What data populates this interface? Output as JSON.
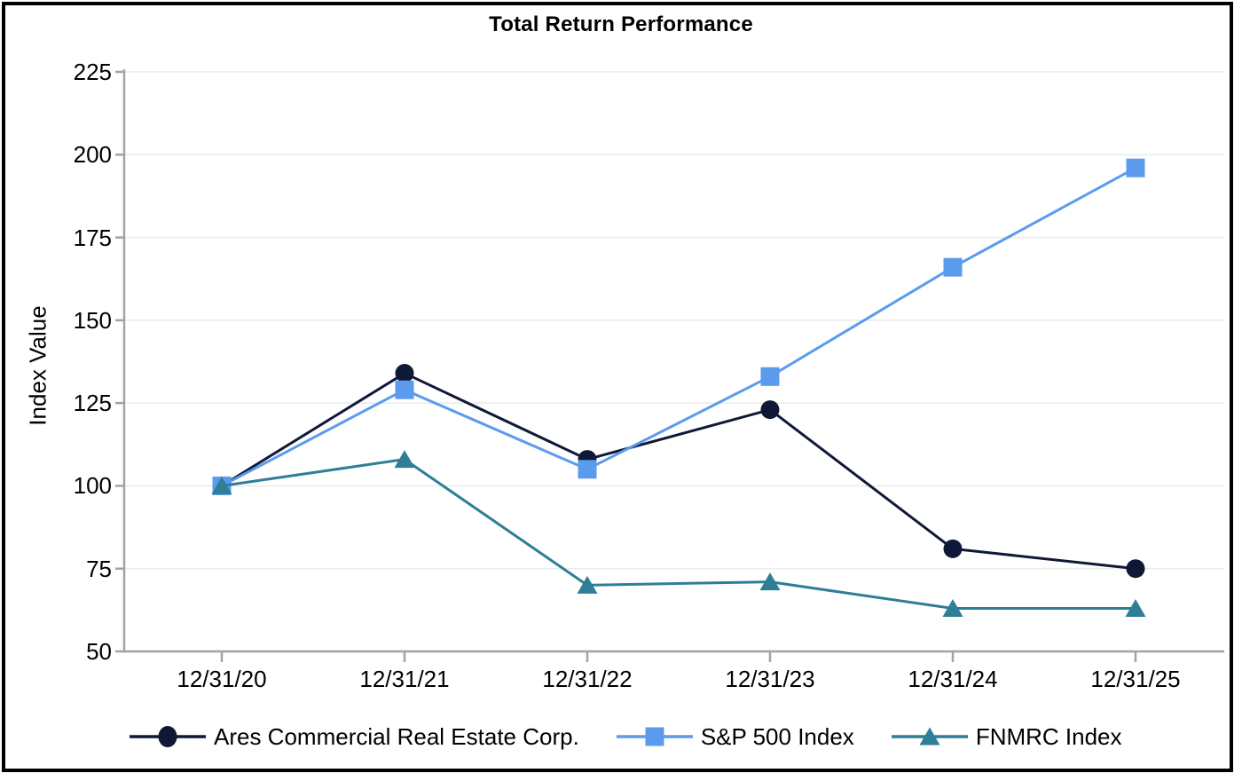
{
  "chart_data": {
    "type": "line",
    "title": "Total Return Performance",
    "xlabel": "",
    "ylabel": "Index Value",
    "categories": [
      "12/31/20",
      "12/31/21",
      "12/31/22",
      "12/31/23",
      "12/31/24",
      "12/31/25"
    ],
    "y_ticks": [
      225,
      200,
      175,
      150,
      125,
      100,
      75,
      50
    ],
    "ylim": [
      50,
      225
    ],
    "grid": "horizontal",
    "grid_color": "#ececec",
    "axis_color": "#a3a3a3",
    "text_color": "#000000",
    "background_color": "#ffffff",
    "frame_color": "#000000",
    "legend_position": "bottom",
    "series": [
      {
        "name": "Ares Commercial Real Estate Corp.",
        "marker": "circle",
        "color": "#101838",
        "values": [
          100,
          134,
          108,
          123,
          81,
          75
        ]
      },
      {
        "name": "S&P 500 Index",
        "marker": "square",
        "color": "#5b9bee",
        "values": [
          100,
          129,
          105,
          133,
          166,
          196
        ]
      },
      {
        "name": "FNMRC Index",
        "marker": "triangle",
        "color": "#2e7e98",
        "values": [
          100,
          108,
          70,
          71,
          63,
          63
        ]
      }
    ]
  }
}
